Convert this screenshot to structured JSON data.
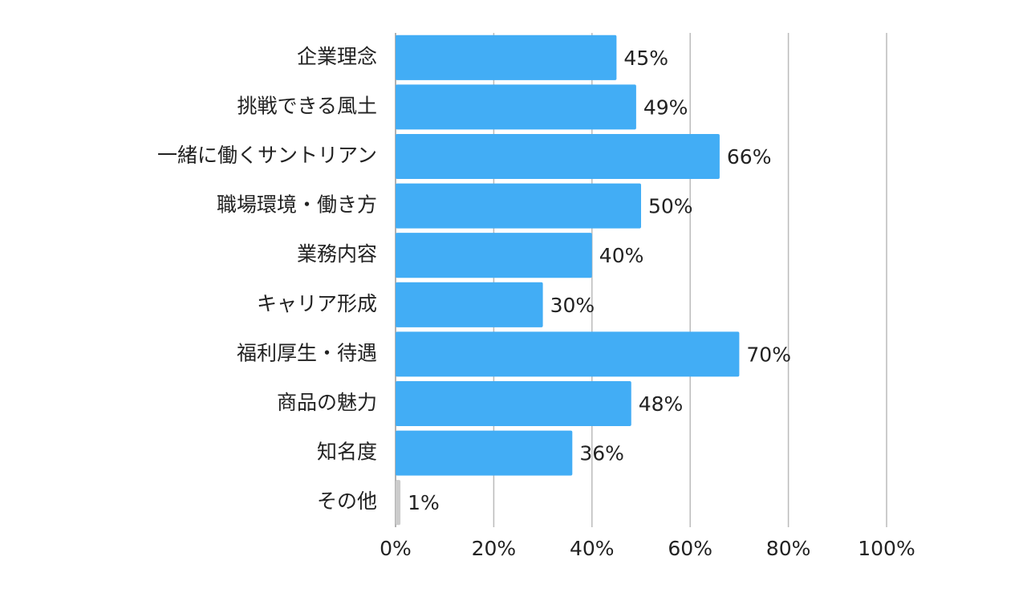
{
  "chart_data": {
    "type": "bar",
    "orientation": "horizontal",
    "categories": [
      "企業理念",
      "挑戦できる風土",
      "一緒に働くサントリアン",
      "職場環境・働き方",
      "業務内容",
      "キャリア形成",
      "福利厚生・待遇",
      "商品の魅力",
      "知名度",
      "その他"
    ],
    "values": [
      45,
      49,
      66,
      50,
      40,
      30,
      70,
      48,
      36,
      1
    ],
    "value_labels": [
      "45%",
      "49%",
      "66%",
      "50%",
      "40%",
      "30%",
      "70%",
      "48%",
      "36%",
      "1%"
    ],
    "colors": [
      "#42adf5",
      "#42adf5",
      "#42adf5",
      "#42adf5",
      "#42adf5",
      "#42adf5",
      "#42adf5",
      "#42adf5",
      "#42adf5",
      "#cccccc"
    ],
    "xlim": [
      0,
      100
    ],
    "xticks": [
      {
        "value": 0,
        "label": "0%"
      },
      {
        "value": 20,
        "label": "20%"
      },
      {
        "value": 40,
        "label": "40%"
      },
      {
        "value": 60,
        "label": "60%"
      },
      {
        "value": 80,
        "label": "80%"
      },
      {
        "value": 100,
        "label": "100%"
      }
    ],
    "grid": true
  }
}
